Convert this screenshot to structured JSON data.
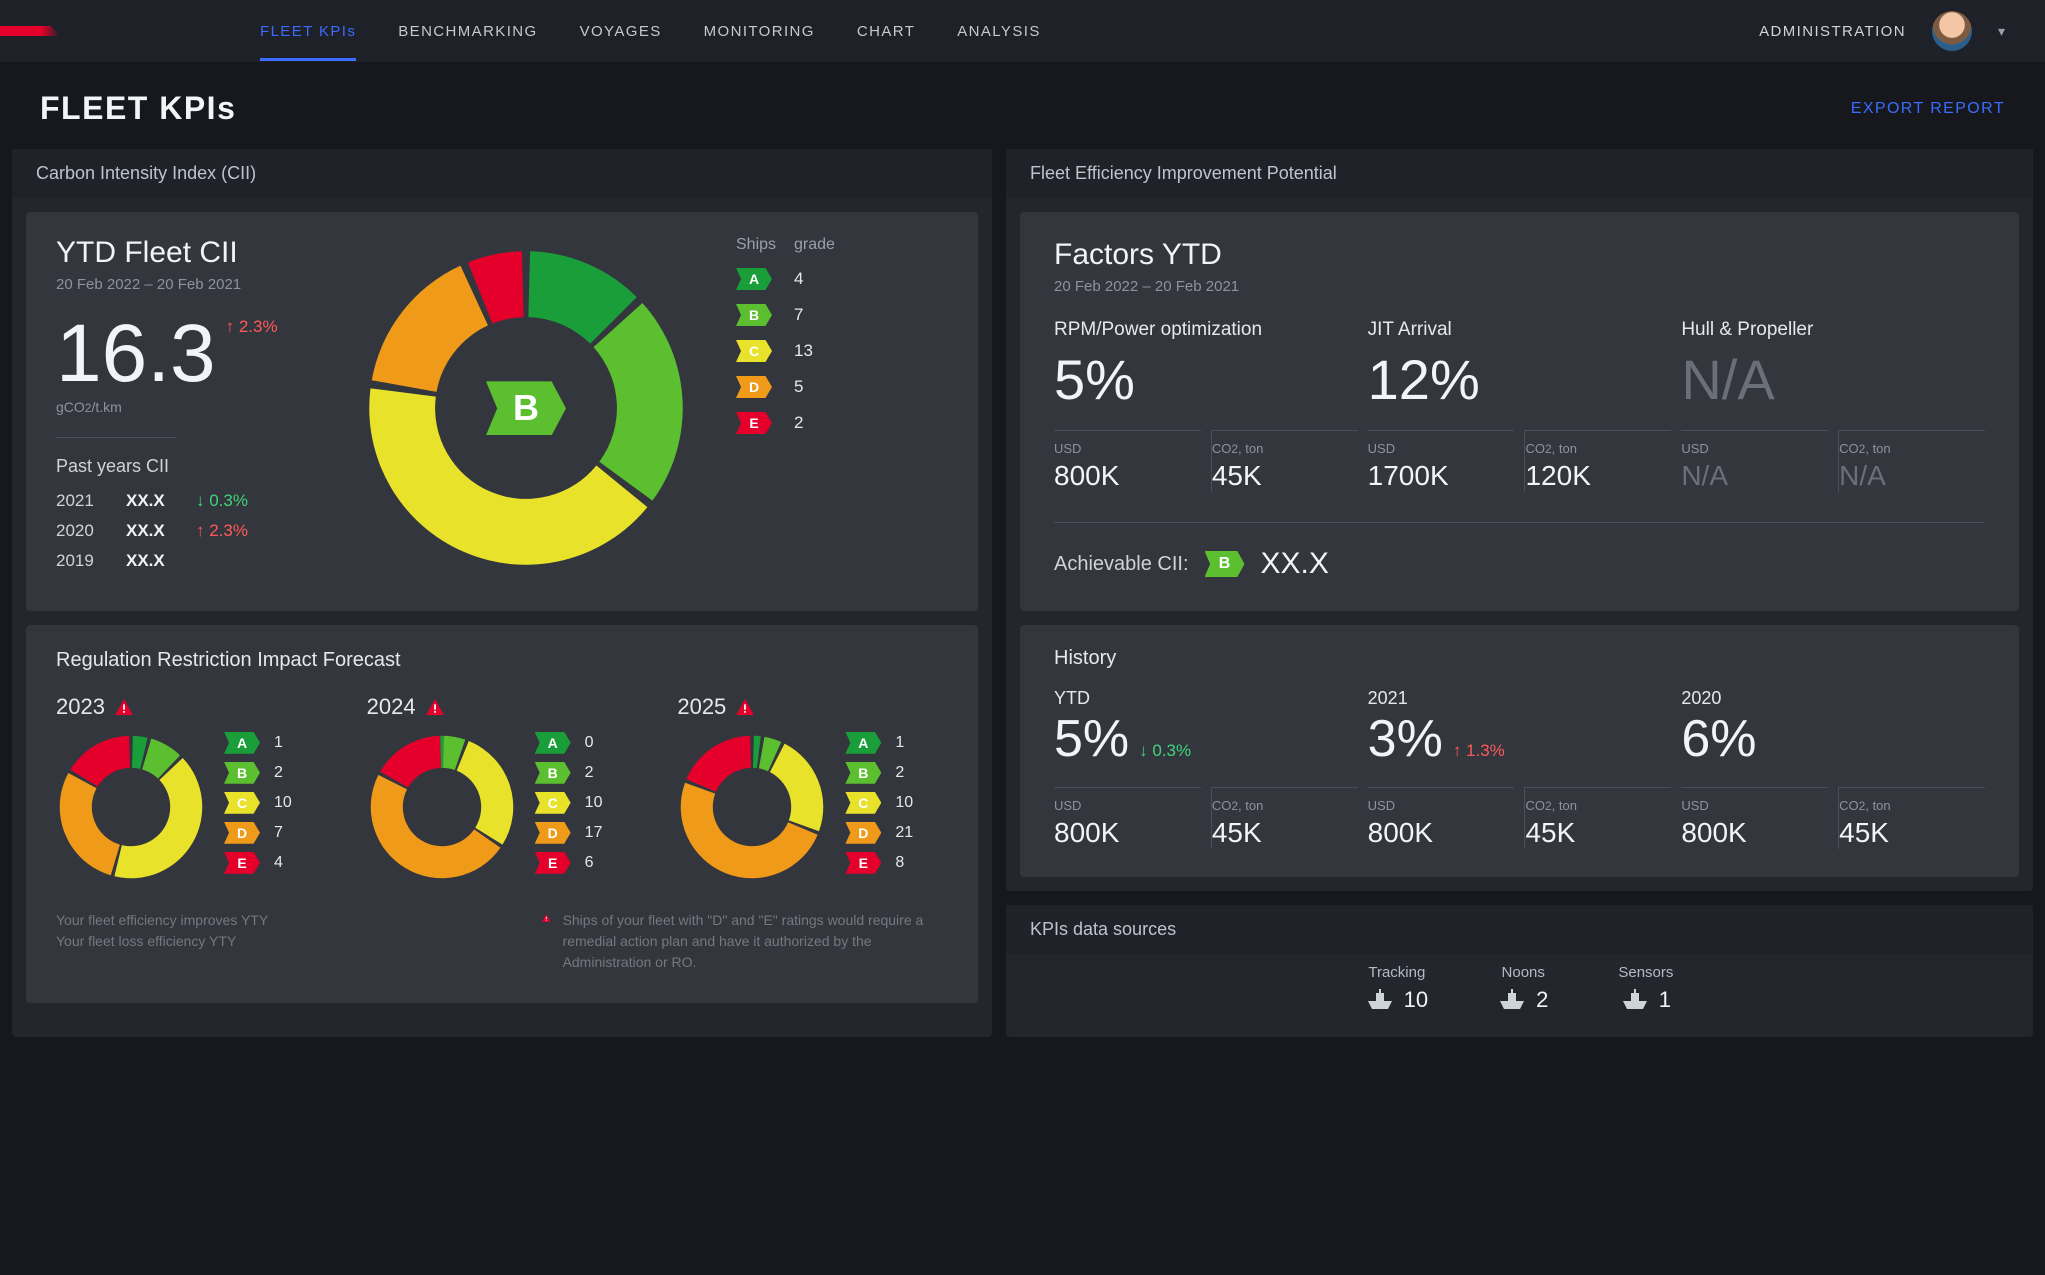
{
  "colors": {
    "bg": "#16181d",
    "panel_head": "#1f2228",
    "panel_body": "#33363d",
    "accent": "#3b6bff",
    "red": "#e4002b",
    "text": "#d0d3d8",
    "muted": "#8d929c",
    "grade_A": "#1a9e3a",
    "grade_B": "#5bbf2f",
    "grade_C": "#e8e22b",
    "grade_D": "#f09a1a",
    "grade_E": "#e4002b"
  },
  "nav": {
    "items": [
      "FLEET KPIs",
      "BENCHMARKING",
      "VOYAGES",
      "MONITORING",
      "CHART",
      "ANALYSIS"
    ],
    "active_index": 0,
    "admin": "ADMINISTRATION"
  },
  "page": {
    "title": "FLEET KPIs",
    "export": "EXPORT REPORT"
  },
  "cii": {
    "panel_title": "Carbon Intensity Index (CII)",
    "heading": "YTD Fleet CII",
    "period": "20 Feb 2022 – 20 Feb 2021",
    "value": "16.3",
    "delta": "↑ 2.3%",
    "delta_dir": "up",
    "unit_pre": "gCO",
    "unit_sub": "2",
    "unit_post": "/t.km",
    "past_title": "Past years CII",
    "past": [
      {
        "year": "2021",
        "val": "XX.X",
        "delta": "↓ 0.3%",
        "dir": "down"
      },
      {
        "year": "2020",
        "val": "XX.X",
        "delta": "↑ 2.3%",
        "dir": "up"
      },
      {
        "year": "2019",
        "val": "XX.X",
        "delta": "",
        "dir": ""
      }
    ],
    "center_grade": "B",
    "legend_head": [
      "Ships",
      "grade"
    ],
    "donut": {
      "type": "donut",
      "inner_radius_ratio": 0.58,
      "gap_deg": 3,
      "segments": [
        {
          "grade": "A",
          "count": 4,
          "color": "#1a9e3a"
        },
        {
          "grade": "B",
          "count": 7,
          "color": "#5bbf2f"
        },
        {
          "grade": "C",
          "count": 13,
          "color": "#e8e22b"
        },
        {
          "grade": "D",
          "count": 5,
          "color": "#f09a1a"
        },
        {
          "grade": "E",
          "count": 2,
          "color": "#e4002b"
        }
      ]
    }
  },
  "forecast": {
    "title": "Regulation Restriction Impact Forecast",
    "years": [
      {
        "year": "2023",
        "warn": true,
        "segments": [
          {
            "grade": "A",
            "count": 1,
            "color": "#1a9e3a"
          },
          {
            "grade": "B",
            "count": 2,
            "color": "#5bbf2f"
          },
          {
            "grade": "C",
            "count": 10,
            "color": "#e8e22b"
          },
          {
            "grade": "D",
            "count": 7,
            "color": "#f09a1a"
          },
          {
            "grade": "E",
            "count": 4,
            "color": "#e4002b"
          }
        ]
      },
      {
        "year": "2024",
        "warn": true,
        "segments": [
          {
            "grade": "A",
            "count": 0,
            "color": "#1a9e3a"
          },
          {
            "grade": "B",
            "count": 2,
            "color": "#5bbf2f"
          },
          {
            "grade": "C",
            "count": 10,
            "color": "#e8e22b"
          },
          {
            "grade": "D",
            "count": 17,
            "color": "#f09a1a"
          },
          {
            "grade": "E",
            "count": 6,
            "color": "#e4002b"
          }
        ]
      },
      {
        "year": "2025",
        "warn": true,
        "segments": [
          {
            "grade": "A",
            "count": 1,
            "color": "#1a9e3a"
          },
          {
            "grade": "B",
            "count": 2,
            "color": "#5bbf2f"
          },
          {
            "grade": "C",
            "count": 10,
            "color": "#e8e22b"
          },
          {
            "grade": "D",
            "count": 21,
            "color": "#f09a1a"
          },
          {
            "grade": "E",
            "count": 8,
            "color": "#e4002b"
          }
        ]
      }
    ],
    "foot_left_1": "Your fleet efficiency improves YTY",
    "foot_left_2": "Your fleet loss efficiency YTY",
    "foot_right": "Ships of your fleet with \"D\" and \"E\" ratings would require a remedial action plan and have it authorized by the Administration or RO."
  },
  "feip": {
    "panel_title": "Fleet Efficiency Improvement Potential",
    "heading": "Factors YTD",
    "period": "20 Feb 2022 – 20 Feb 2021",
    "factors": [
      {
        "name": "RPM/Power optimization",
        "pct": "5%",
        "usd": "800K",
        "co2": "45K"
      },
      {
        "name": "JIT Arrival",
        "pct": "12%",
        "usd": "1700K",
        "co2": "120K"
      },
      {
        "name": "Hull & Propeller",
        "pct": "N/A",
        "usd": "N/A",
        "co2": "N/A",
        "na": true
      }
    ],
    "metric_labels": {
      "usd": "USD",
      "co2_pre": "CO",
      "co2_sub": "2",
      "co2_post": ", ton"
    },
    "achievable_label": "Achievable CII:",
    "achievable_grade": "B",
    "achievable_val": "XX.X"
  },
  "history": {
    "title": "History",
    "items": [
      {
        "year": "YTD",
        "pct": "5%",
        "delta": "↓ 0.3%",
        "dir": "down",
        "usd": "800K",
        "co2": "45K"
      },
      {
        "year": "2021",
        "pct": "3%",
        "delta": "↑ 1.3%",
        "dir": "up",
        "usd": "800K",
        "co2": "45K"
      },
      {
        "year": "2020",
        "pct": "6%",
        "delta": "",
        "dir": "",
        "usd": "800K",
        "co2": "45K"
      }
    ]
  },
  "sources": {
    "title": "KPIs data sources",
    "items": [
      {
        "label": "Tracking",
        "val": "10"
      },
      {
        "label": "Noons",
        "val": "2"
      },
      {
        "label": "Sensors",
        "val": "1"
      }
    ]
  }
}
